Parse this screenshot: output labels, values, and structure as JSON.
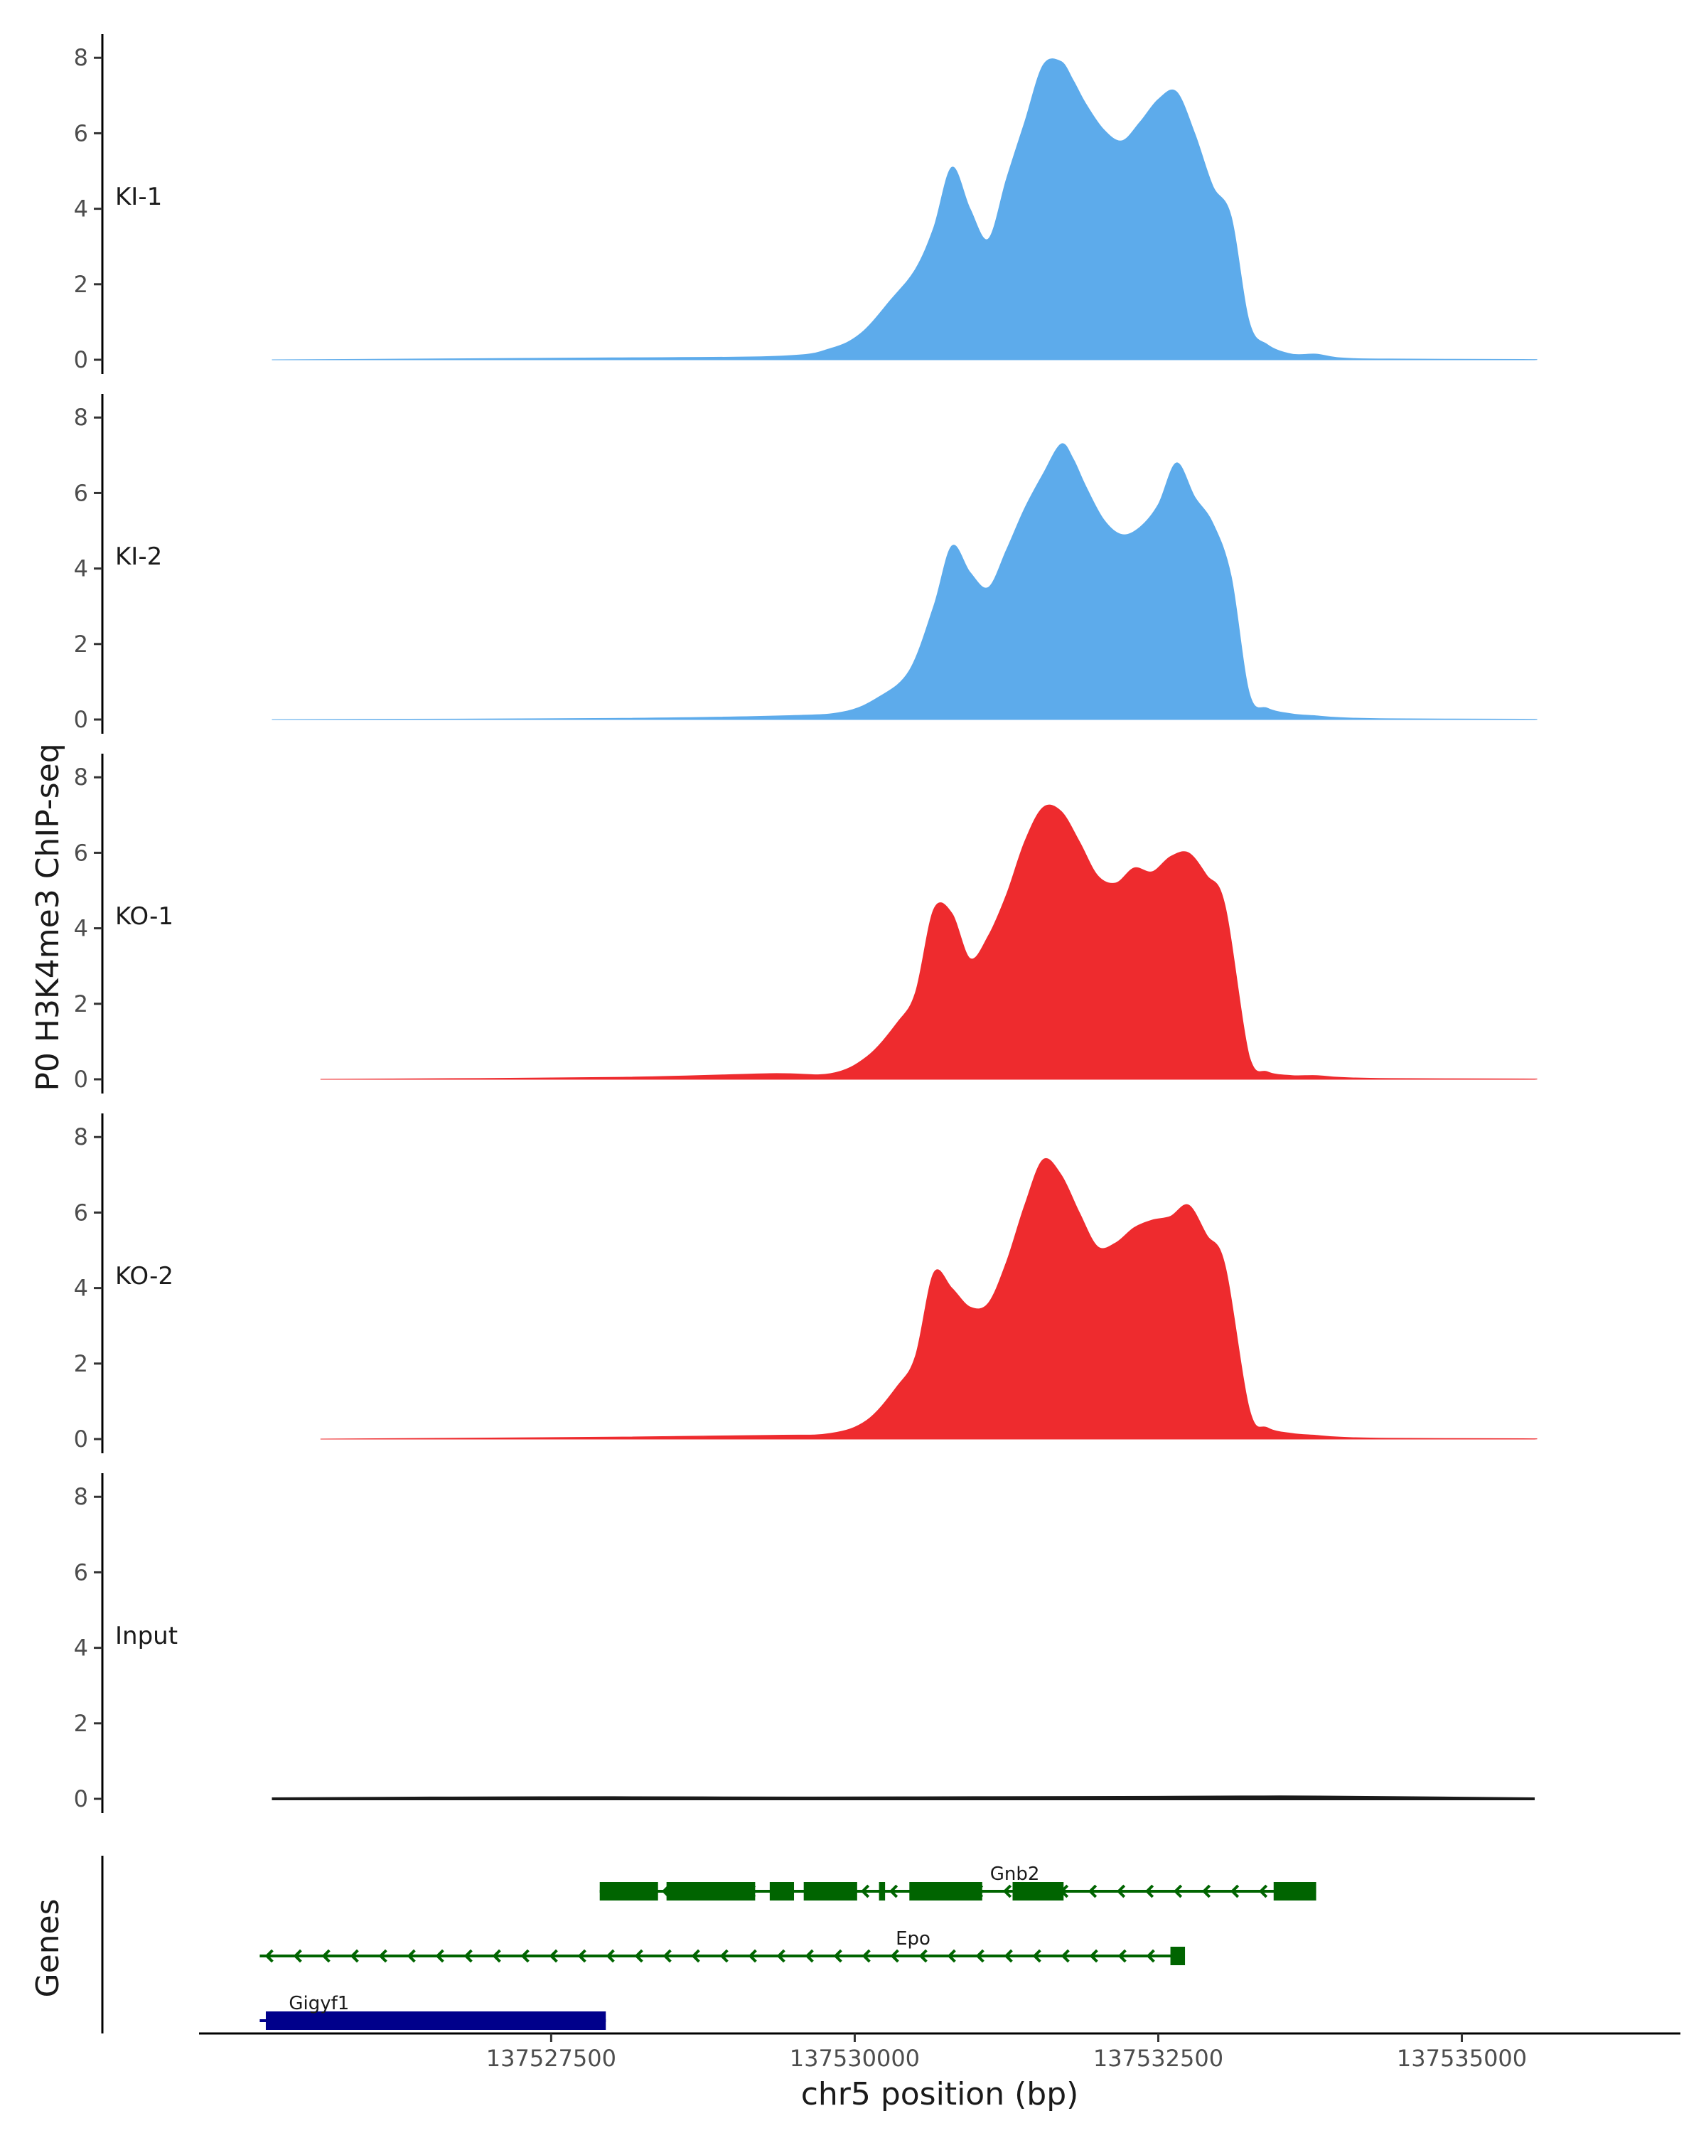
{
  "chart_data": {
    "type": "area",
    "ylabel": "P0 H3K4me3 ChIP-seq",
    "xlabel": "chr5 position (bp)",
    "xlim": [
      137524600,
      137536800
    ],
    "ylim": [
      0,
      8.4
    ],
    "yticks": [
      0,
      2,
      4,
      6,
      8
    ],
    "xticks": [
      137527500,
      137530000,
      137532500,
      137535000
    ],
    "xtick_labels": [
      "137527500",
      "137530000",
      "137532500",
      "137535000"
    ],
    "colors": {
      "KI": "#5dabeb",
      "KO": "#ee2b2e",
      "Input": "#1a1a1a",
      "gene_main": "#006400",
      "gene_other": "#00008b"
    },
    "tracks": [
      {
        "name": "KI-1",
        "color": "#5dabeb",
        "x": [
          137525200,
          137528000,
          137529400,
          137529800,
          137530050,
          137530300,
          137530500,
          137530650,
          137530800,
          137530950,
          137531100,
          137531250,
          137531400,
          137531550,
          137531700,
          137531800,
          137531900,
          137532050,
          137532200,
          137532350,
          137532500,
          137532650,
          137532800,
          137532950,
          137533100,
          137533250,
          137533400,
          137533600,
          137533800,
          137534000,
          137534400,
          137535500,
          137535600
        ],
        "y": [
          0,
          0.05,
          0.1,
          0.3,
          0.7,
          1.6,
          2.4,
          3.5,
          5.1,
          4.0,
          3.2,
          4.8,
          6.3,
          7.8,
          7.9,
          7.4,
          6.8,
          6.1,
          5.8,
          6.3,
          6.9,
          7.1,
          6.0,
          4.6,
          3.8,
          1.0,
          0.4,
          0.15,
          0.15,
          0.05,
          0.02,
          0.01,
          0
        ]
      },
      {
        "name": "KI-2",
        "color": "#5dabeb",
        "x": [
          137525200,
          137528000,
          137529400,
          137529900,
          137530200,
          137530450,
          137530650,
          137530800,
          137530950,
          137531100,
          137531250,
          137531400,
          137531550,
          137531700,
          137531800,
          137531900,
          137532050,
          137532200,
          137532350,
          137532500,
          137532650,
          137532800,
          137532950,
          137533100,
          137533250,
          137533400,
          137533600,
          137533800,
          137534000,
          137534400,
          137535500,
          137535600
        ],
        "y": [
          0,
          0.03,
          0.1,
          0.2,
          0.6,
          1.3,
          3.0,
          4.6,
          3.9,
          3.5,
          4.5,
          5.6,
          6.5,
          7.3,
          6.9,
          6.2,
          5.3,
          4.9,
          5.1,
          5.7,
          6.8,
          5.9,
          5.2,
          3.8,
          0.7,
          0.3,
          0.15,
          0.1,
          0.05,
          0.02,
          0.01,
          0
        ]
      },
      {
        "name": "KO-1",
        "color": "#ee2b2e",
        "x": [
          137525600,
          137528000,
          137529300,
          137529800,
          137530100,
          137530350,
          137530500,
          137530650,
          137530800,
          137530950,
          137531100,
          137531250,
          137531400,
          137531550,
          137531700,
          137531850,
          137532000,
          137532150,
          137532300,
          137532450,
          137532600,
          137532750,
          137532900,
          137533050,
          137533250,
          137533400,
          137533600,
          137533800,
          137534000,
          137534400,
          137535500,
          137535600
        ],
        "y": [
          0,
          0.05,
          0.15,
          0.15,
          0.6,
          1.5,
          2.3,
          4.5,
          4.4,
          3.2,
          3.8,
          4.9,
          6.3,
          7.2,
          7.1,
          6.3,
          5.4,
          5.2,
          5.6,
          5.5,
          5.9,
          6.0,
          5.4,
          4.6,
          0.6,
          0.2,
          0.1,
          0.1,
          0.05,
          0.02,
          0.01,
          0
        ]
      },
      {
        "name": "KO-2",
        "color": "#ee2b2e",
        "x": [
          137525600,
          137528000,
          137529300,
          137529800,
          137530100,
          137530350,
          137530500,
          137530650,
          137530800,
          137530950,
          137531100,
          137531250,
          137531400,
          137531550,
          137531700,
          137531850,
          137532000,
          137532150,
          137532300,
          137532450,
          137532600,
          137532750,
          137532900,
          137533050,
          137533250,
          137533400,
          137533600,
          137533800,
          137534000,
          137534400,
          137535500,
          137535600
        ],
        "y": [
          0,
          0.05,
          0.1,
          0.15,
          0.5,
          1.4,
          2.2,
          4.4,
          4.0,
          3.5,
          3.6,
          4.7,
          6.2,
          7.4,
          7.0,
          6.0,
          5.1,
          5.2,
          5.6,
          5.8,
          5.9,
          6.2,
          5.4,
          4.6,
          0.8,
          0.3,
          0.15,
          0.1,
          0.05,
          0.02,
          0.01,
          0
        ]
      },
      {
        "name": "Input",
        "color": "#1a1a1a",
        "x": [
          137525200,
          137526500,
          137528000,
          137529500,
          137531000,
          137532500,
          137533500,
          137534500,
          137535600
        ],
        "y": [
          0,
          0.02,
          0.03,
          0.02,
          0.03,
          0.04,
          0.05,
          0.03,
          0
        ]
      }
    ],
    "genes_label": "Genes",
    "genes": [
      {
        "name": "Gnb2",
        "strand": "-",
        "color": "#006400",
        "row": 0,
        "start": 137527900,
        "end": 137533800,
        "exons": [
          [
            137527900,
            137528380
          ],
          [
            137528450,
            137529180
          ],
          [
            137529300,
            137529500
          ],
          [
            137529580,
            137530020
          ],
          [
            137530200,
            137530250
          ],
          [
            137530450,
            137531050
          ],
          [
            137531300,
            137531720
          ],
          [
            137533450,
            137533800
          ]
        ]
      },
      {
        "name": "Epo",
        "strand": "-",
        "color": "#006400",
        "row": 1,
        "start": 137525100,
        "end": 137532700,
        "exons": [
          [
            137532600,
            137532720
          ]
        ]
      },
      {
        "name": "Gigyf1",
        "strand": "+",
        "color": "#00008b",
        "row": 2,
        "start": 137525100,
        "end": 137527950,
        "exons": [
          [
            137525150,
            137527950
          ]
        ]
      }
    ]
  }
}
